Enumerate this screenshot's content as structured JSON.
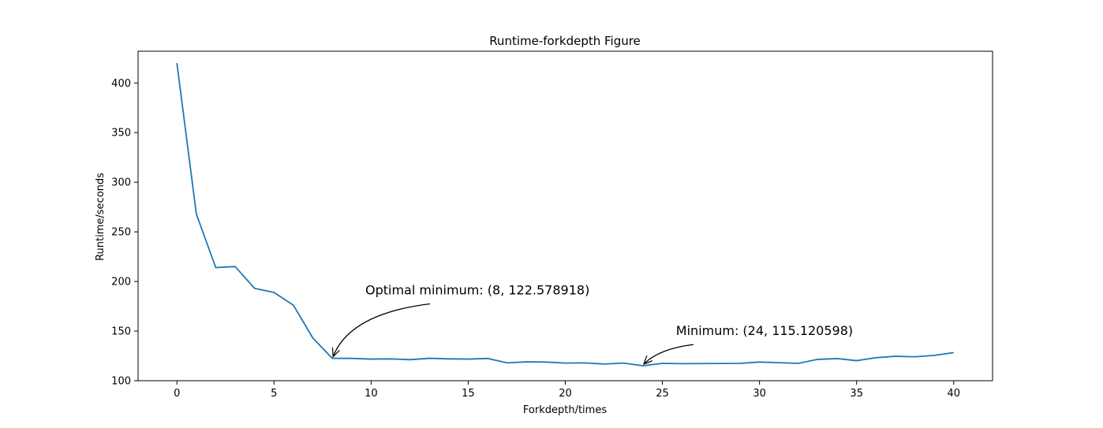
{
  "chart_data": {
    "type": "line",
    "title": "Runtime-forkdepth Figure",
    "xlabel": "Forkdepth/times",
    "ylabel": "Runtime/seconds",
    "xlim": [
      -2,
      42
    ],
    "ylim": [
      100,
      432
    ],
    "xticks": [
      0,
      5,
      10,
      15,
      20,
      25,
      30,
      35,
      40
    ],
    "yticks": [
      100,
      150,
      200,
      250,
      300,
      350,
      400
    ],
    "grid": false,
    "line_color": "#1f77b4",
    "series": [
      {
        "x": [
          0,
          1,
          2,
          3,
          4,
          5,
          6,
          7,
          8,
          9,
          10,
          11,
          12,
          13,
          14,
          15,
          16,
          17,
          18,
          19,
          20,
          21,
          22,
          23,
          24,
          25,
          26,
          27,
          28,
          29,
          30,
          31,
          32,
          33,
          34,
          35,
          36,
          37,
          38,
          39,
          40
        ],
        "values": [
          420,
          268,
          214,
          215,
          193,
          189,
          176,
          143,
          122.578918,
          122.5,
          121.8,
          122,
          121.2,
          122.6,
          122,
          121.8,
          122.4,
          118,
          119,
          118.8,
          117.8,
          118,
          116.8,
          117.8,
          115.120598,
          117.5,
          117.2,
          117.3,
          117.4,
          117.5,
          118.8,
          118.2,
          117.5,
          121.5,
          122.3,
          120.2,
          123.2,
          124.6,
          124.1,
          125.5,
          128.3
        ]
      }
    ],
    "annotations": [
      {
        "text": "Optimal minimum: (8, 122.578918)",
        "point": [
          8,
          122.578918
        ],
        "text_at": [
          9.7,
          187
        ]
      },
      {
        "text": "Minimum: (24, 115.120598)",
        "point": [
          24,
          115.120598
        ],
        "text_at": [
          25.7,
          146
        ]
      }
    ]
  }
}
